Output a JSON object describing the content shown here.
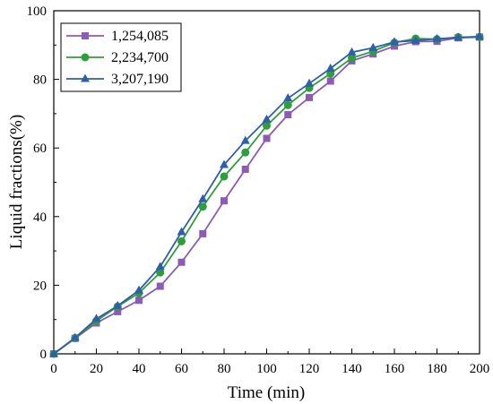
{
  "chart_data": {
    "type": "line",
    "title": "",
    "xlabel": "Time (min)",
    "ylabel": "Liquid fractions(%)",
    "xlim": [
      0,
      200
    ],
    "ylim": [
      0,
      100
    ],
    "x_ticks": [
      "0",
      "20",
      "40",
      "60",
      "80",
      "100",
      "120",
      "140",
      "160",
      "180",
      "200"
    ],
    "y_ticks": [
      "0",
      "20",
      "40",
      "60",
      "80",
      "100"
    ],
    "grid": false,
    "legend_position": "top-left",
    "x": [
      0,
      10,
      20,
      30,
      40,
      50,
      60,
      70,
      80,
      90,
      100,
      110,
      120,
      130,
      140,
      150,
      160,
      170,
      180,
      190,
      200
    ],
    "series": [
      {
        "name": "1,254,085",
        "color": "#8c5bb5",
        "marker": "square",
        "values": [
          0,
          4.5,
          9.0,
          12.3,
          15.6,
          19.7,
          26.7,
          35.0,
          44.6,
          53.8,
          62.8,
          69.7,
          74.7,
          79.5,
          85.4,
          87.4,
          89.7,
          91.0,
          91.1,
          92.1,
          92.3
        ]
      },
      {
        "name": "2,234,700",
        "color": "#2e9e3a",
        "marker": "circle",
        "values": [
          0,
          4.6,
          9.6,
          13.8,
          17.7,
          23.7,
          32.8,
          42.9,
          51.7,
          58.7,
          66.5,
          72.5,
          77.5,
          81.7,
          86.2,
          88.2,
          90.7,
          91.9,
          91.7,
          92.3,
          92.4
        ]
      },
      {
        "name": "3,207,190",
        "color": "#2e5fa8",
        "marker": "triangle",
        "values": [
          0,
          4.7,
          10.2,
          14.0,
          18.5,
          25.4,
          35.5,
          45.1,
          55.1,
          62.1,
          68.3,
          74.5,
          78.8,
          83.2,
          87.9,
          89.2,
          90.9,
          91.3,
          91.8,
          92.2,
          92.5
        ]
      }
    ]
  }
}
